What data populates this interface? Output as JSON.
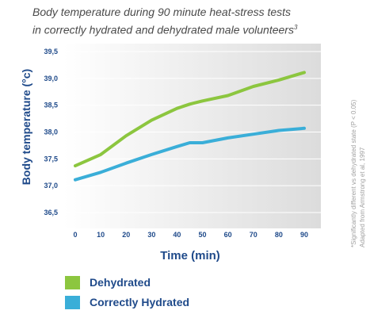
{
  "title": {
    "line1": "Body temperature during 90 minute heat-stress tests",
    "line2": "in correctly hydrated and dehydrated male volunteers",
    "superscript": "3"
  },
  "side_note": {
    "line1": "*Significantly different vs dehydrated state (P < 0.05)",
    "line2": "Adapted from Armstrong et al, 1997"
  },
  "legend": [
    {
      "label": "Dehydrated",
      "color": "#8cc63f"
    },
    {
      "label": "Correctly Hydrated",
      "color": "#3aaed8"
    }
  ],
  "chart_data": {
    "type": "line",
    "xlabel": "Time (min)",
    "ylabel": "Body temperature (°c)",
    "xlim": [
      0,
      90
    ],
    "ylim": [
      36.5,
      39.5
    ],
    "x_ticks": [
      "0",
      "10",
      "20",
      "30",
      "40",
      "50",
      "60",
      "70",
      "80",
      "90"
    ],
    "y_ticks": [
      "36,5",
      "37,0",
      "37,5",
      "38,0",
      "38,5",
      "39,0",
      "39,5"
    ],
    "grid": true,
    "legend_position": "bottom",
    "series": [
      {
        "name": "Dehydrated",
        "color": "#8cc63f",
        "x": [
          0,
          10,
          20,
          30,
          40,
          45,
          50,
          60,
          70,
          80,
          90
        ],
        "y": [
          37.37,
          37.58,
          37.93,
          38.22,
          38.44,
          38.52,
          38.58,
          38.68,
          38.85,
          38.97,
          39.11
        ]
      },
      {
        "name": "Correctly Hydrated",
        "color": "#3aaed8",
        "x": [
          0,
          10,
          20,
          30,
          40,
          45,
          50,
          60,
          70,
          80,
          90
        ],
        "y": [
          37.11,
          37.25,
          37.42,
          37.58,
          37.73,
          37.8,
          37.8,
          37.89,
          37.96,
          38.03,
          38.07
        ]
      }
    ]
  }
}
